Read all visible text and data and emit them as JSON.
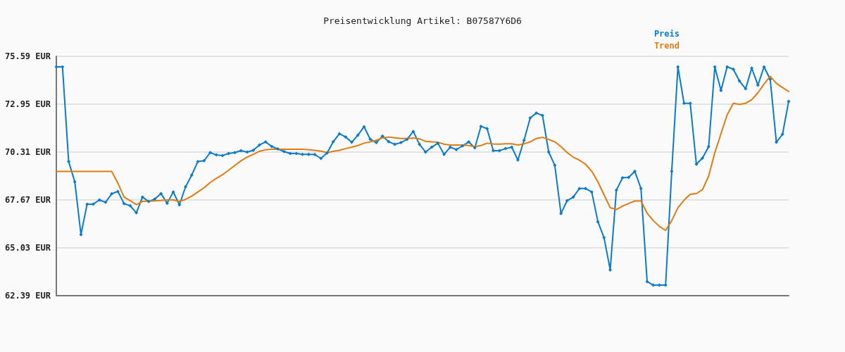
{
  "chart_data": {
    "type": "line",
    "title": "Preisentwicklung Artikel: B07587Y6D6",
    "categories": [
      null,
      null,
      null,
      null,
      null,
      null,
      null,
      null,
      null,
      null,
      null,
      null,
      null,
      null,
      null,
      null,
      null,
      null,
      null,
      null,
      null,
      null,
      null,
      null,
      null,
      null,
      null,
      null,
      null,
      null,
      null,
      null,
      null,
      null,
      null,
      null,
      null,
      null,
      null,
      null,
      null,
      null,
      null,
      null,
      null,
      null,
      null,
      null,
      null,
      null,
      null,
      null,
      null,
      null,
      null,
      null,
      null,
      null,
      null,
      null,
      null,
      null,
      null,
      null,
      null,
      null,
      null,
      null,
      null,
      null,
      null,
      null,
      null,
      null,
      null,
      null,
      null,
      null,
      null,
      null,
      null,
      null,
      null,
      null,
      null,
      null,
      null,
      null,
      null,
      null,
      null,
      null,
      null,
      null,
      null,
      null,
      null,
      null,
      null,
      null,
      null,
      null,
      null,
      null,
      null,
      null,
      null,
      null,
      null,
      null,
      null,
      null,
      null,
      null,
      null,
      null,
      null,
      null,
      null,
      null
    ],
    "series": [
      {
        "name": "Preis",
        "color": "#0a7bc8",
        "marker": "diamond",
        "values": [
          75.01,
          75.01,
          69.79,
          68.67,
          65.76,
          67.44,
          67.44,
          67.67,
          67.54,
          68.01,
          68.14,
          67.47,
          67.35,
          66.96,
          67.83,
          67.58,
          67.72,
          68.02,
          67.49,
          68.11,
          67.4,
          68.4,
          69.04,
          69.79,
          69.83,
          70.28,
          70.15,
          70.12,
          70.23,
          70.28,
          70.39,
          70.31,
          70.41,
          70.7,
          70.87,
          70.62,
          70.48,
          70.34,
          70.23,
          70.23,
          70.18,
          70.18,
          70.17,
          69.96,
          70.26,
          70.88,
          71.32,
          71.14,
          70.85,
          71.24,
          71.71,
          71.02,
          70.83,
          71.19,
          70.88,
          70.74,
          70.83,
          71.01,
          71.45,
          70.74,
          70.31,
          70.58,
          70.8,
          70.18,
          70.58,
          70.45,
          70.65,
          70.87,
          70.54,
          71.73,
          71.6,
          70.39,
          70.39,
          70.5,
          70.58,
          69.87,
          70.96,
          72.19,
          72.46,
          72.33,
          70.32,
          69.58,
          66.92,
          67.63,
          67.83,
          68.3,
          68.3,
          68.11,
          66.47,
          65.59,
          63.81,
          68.21,
          68.89,
          68.91,
          69.25,
          68.3,
          63.17,
          62.97,
          62.97,
          62.97,
          69.25,
          75.01,
          73.0,
          73.0,
          69.64,
          69.98,
          70.61,
          75.01,
          73.71,
          75.01,
          74.88,
          74.23,
          73.8,
          74.94,
          74.0,
          75.01,
          74.32,
          70.85,
          71.29,
          73.11
        ]
      },
      {
        "name": "Trend",
        "color": "#e07b10",
        "marker": "none",
        "values": [
          69.24,
          69.24,
          69.24,
          69.24,
          69.24,
          69.24,
          69.24,
          69.24,
          69.24,
          69.24,
          68.6,
          67.83,
          67.63,
          67.41,
          67.59,
          67.6,
          67.62,
          67.64,
          67.67,
          67.67,
          67.59,
          67.7,
          67.88,
          68.11,
          68.34,
          68.63,
          68.86,
          69.06,
          69.31,
          69.57,
          69.83,
          70.03,
          70.18,
          70.35,
          70.44,
          70.47,
          70.47,
          70.47,
          70.47,
          70.47,
          70.47,
          70.44,
          70.41,
          70.36,
          70.28,
          70.35,
          70.41,
          70.5,
          70.58,
          70.67,
          70.8,
          70.87,
          70.96,
          71.09,
          71.14,
          71.1,
          71.06,
          71.06,
          71.09,
          71.04,
          70.9,
          70.87,
          70.85,
          70.75,
          70.7,
          70.7,
          70.7,
          70.67,
          70.61,
          70.67,
          70.8,
          70.76,
          70.75,
          70.77,
          70.77,
          70.7,
          70.76,
          70.87,
          71.06,
          71.12,
          71.01,
          70.87,
          70.61,
          70.28,
          70.03,
          69.86,
          69.64,
          69.25,
          68.67,
          67.95,
          67.24,
          67.14,
          67.33,
          67.47,
          67.61,
          67.61,
          66.94,
          66.53,
          66.21,
          65.99,
          66.53,
          67.24,
          67.66,
          67.98,
          68.02,
          68.24,
          68.99,
          70.28,
          71.32,
          72.36,
          73.0,
          72.94,
          73.0,
          73.2,
          73.58,
          74.06,
          74.49,
          74.1,
          73.87,
          73.65
        ]
      }
    ],
    "ylim": [
      62.39,
      75.59
    ],
    "yticks": [
      {
        "value": 62.39,
        "label": "62.39 EUR"
      },
      {
        "value": 65.03,
        "label": "65.03 EUR"
      },
      {
        "value": 67.67,
        "label": "67.67 EUR"
      },
      {
        "value": 70.31,
        "label": "70.31 EUR"
      },
      {
        "value": 72.95,
        "label": "72.95 EUR"
      },
      {
        "value": 75.59,
        "label": "75.59 EUR"
      }
    ],
    "grid": "y",
    "legend": "top right",
    "tick_labels": "y",
    "line_style": "solid"
  }
}
